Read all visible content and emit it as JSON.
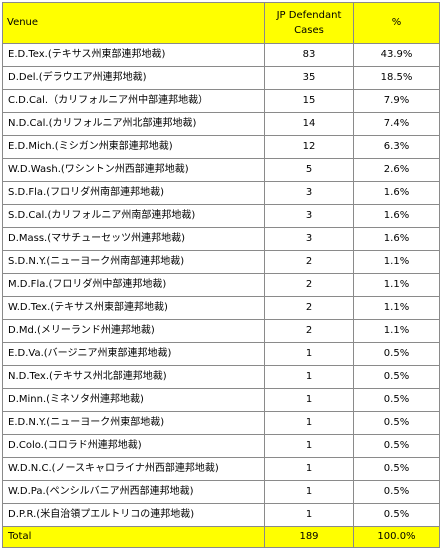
{
  "chart_data": {
    "type": "table",
    "columns": [
      "Venue",
      "JP Defendant Cases",
      "%"
    ],
    "rows": [
      {
        "venue": "E.D.Tex.(テキサス州東部連邦地裁)",
        "cases": "83",
        "pct": "43.9%"
      },
      {
        "venue": "D.Del.(デラウエア州連邦地裁)",
        "cases": "35",
        "pct": "18.5%"
      },
      {
        "venue": "C.D.Cal.（カリフォルニア州中部連邦地裁）",
        "cases": "15",
        "pct": "7.9%"
      },
      {
        "venue": "N.D.Cal.(カリフォルニア州北部連邦地裁)",
        "cases": "14",
        "pct": "7.4%"
      },
      {
        "venue": "E.D.Mich.(ミシガン州東部連邦地裁)",
        "cases": "12",
        "pct": "6.3%"
      },
      {
        "venue": "W.D.Wash.(ワシントン州西部連邦地裁)",
        "cases": "5",
        "pct": "2.6%"
      },
      {
        "venue": "S.D.Fla.(フロリダ州南部連邦地裁)",
        "cases": "3",
        "pct": "1.6%"
      },
      {
        "venue": "S.D.Cal.(カリフォルニア州南部連邦地裁)",
        "cases": "3",
        "pct": "1.6%"
      },
      {
        "venue": "D.Mass.(マサチューセッツ州連邦地裁)",
        "cases": "3",
        "pct": "1.6%"
      },
      {
        "venue": "S.D.N.Y.(ニューヨーク州南部連邦地裁)",
        "cases": "2",
        "pct": "1.1%"
      },
      {
        "venue": "M.D.Fla.(フロリダ州中部連邦地裁)",
        "cases": "2",
        "pct": "1.1%"
      },
      {
        "venue": "W.D.Tex.(テキサス州東部連邦地裁)",
        "cases": "2",
        "pct": "1.1%"
      },
      {
        "venue": "D.Md.(メリーランド州連邦地裁)",
        "cases": "2",
        "pct": "1.1%"
      },
      {
        "venue": "E.D.Va.(バージニア州東部連邦地裁)",
        "cases": "1",
        "pct": "0.5%"
      },
      {
        "venue": "N.D.Tex.(テキサス州北部連邦地裁)",
        "cases": "1",
        "pct": "0.5%"
      },
      {
        "venue": "D.Minn.(ミネソタ州連邦地裁)",
        "cases": "1",
        "pct": "0.5%"
      },
      {
        "venue": "E.D.N.Y.(ニューヨーク州東部地裁)",
        "cases": "1",
        "pct": "0.5%"
      },
      {
        "venue": "D.Colo.(コロラド州連邦地裁)",
        "cases": "1",
        "pct": "0.5%"
      },
      {
        "venue": "W.D.N.C.(ノースキャロライナ州西部連邦地裁)",
        "cases": "1",
        "pct": "0.5%"
      },
      {
        "venue": "W.D.Pa.(ペンシルバニア州西部連邦地裁)",
        "cases": "1",
        "pct": "0.5%"
      },
      {
        "venue": "D.P.R.(米自治領プエルトリコの連邦地裁)",
        "cases": "1",
        "pct": "0.5%"
      }
    ],
    "total": {
      "venue": "Total",
      "cases": "189",
      "pct": "100.0%"
    },
    "colors": {
      "header_fill": "#ffff00",
      "total_fill": "#ffff00",
      "border": "#8a8a8a"
    }
  }
}
